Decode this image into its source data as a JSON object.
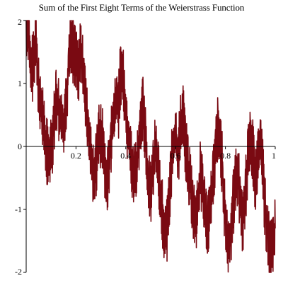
{
  "chart_data": {
    "type": "line",
    "title": "Sum of the First Eight Terms of the Weierstrass Function",
    "xlabel": "",
    "ylabel": "",
    "xlim": [
      0,
      1
    ],
    "ylim": [
      -2,
      2
    ],
    "x_ticks": [
      0.2,
      0.4,
      0.6,
      0.8,
      1
    ],
    "x_tick_labels": [
      "0.2",
      "0.4",
      "0.6",
      "0.8",
      "1"
    ],
    "y_ticks": [
      -2,
      -1,
      0,
      1,
      2
    ],
    "y_tick_labels": [
      "-2",
      "-1",
      "0",
      "1",
      "2"
    ],
    "grid": false,
    "legend": "none",
    "line_color": "#7a0a12",
    "series": [
      {
        "x": [
          0,
          0.01,
          0.02,
          0.03,
          0.04,
          0.05,
          0.06,
          0.07,
          0.08,
          0.09,
          0.1,
          0.11,
          0.12,
          0.13,
          0.14,
          0.15,
          0.16,
          0.17,
          0.18,
          0.19,
          0.2,
          0.21,
          0.22,
          0.23,
          0.24,
          0.25,
          0.26,
          0.27,
          0.28,
          0.29,
          0.3,
          0.31,
          0.32,
          0.33,
          0.34,
          0.35,
          0.36,
          0.37,
          0.38,
          0.39,
          0.4,
          0.41,
          0.42,
          0.43,
          0.44,
          0.45,
          0.46,
          0.47,
          0.48,
          0.49,
          0.5,
          0.51,
          0.52,
          0.53,
          0.54,
          0.55,
          0.56,
          0.57,
          0.58,
          0.59,
          0.6,
          0.61,
          0.62,
          0.63,
          0.64,
          0.65,
          0.66,
          0.67,
          0.68,
          0.69,
          0.7,
          0.71,
          0.72,
          0.73,
          0.74,
          0.75,
          0.76,
          0.77,
          0.78,
          0.79,
          0.8,
          0.81,
          0.82,
          0.83,
          0.84,
          0.85,
          0.86,
          0.87,
          0.88,
          0.89,
          0.9,
          0.91,
          0.92,
          0.93,
          0.94,
          0.95,
          0.96,
          0.97,
          0.98,
          0.99,
          1
        ],
        "y": [
          1.8,
          1.9,
          1.2,
          1.3,
          1.7,
          0.9,
          0.6,
          0.3,
          0.0,
          -0.2,
          -0.1,
          0.3,
          0.8,
          0.6,
          0.4,
          0.2,
          0.6,
          1.3,
          1.7,
          1.5,
          1.3,
          1.2,
          1.5,
          1.1,
          0.6,
          0.2,
          -0.2,
          -0.5,
          -0.3,
          0.1,
          0.2,
          0.0,
          -0.6,
          -0.4,
          0.1,
          0.4,
          0.8,
          0.6,
          1.2,
          1.0,
          0.5,
          0.2,
          -0.2,
          -0.5,
          -0.4,
          -0.1,
          0.4,
          0.6,
          0.1,
          -0.6,
          -0.8,
          -0.4,
          0.0,
          -0.3,
          -0.8,
          -1.2,
          -1.5,
          -1.1,
          -0.5,
          0.0,
          0.2,
          -0.2,
          0.3,
          0.5,
          0.0,
          -0.4,
          -0.6,
          -1.0,
          -1.2,
          -0.9,
          -0.4,
          -0.8,
          -1.1,
          -1.3,
          -1.0,
          -0.5,
          -0.1,
          0.3,
          0.1,
          -0.5,
          -1.2,
          -1.6,
          -1.4,
          -1.0,
          -0.6,
          -0.4,
          -0.9,
          -1.2,
          -0.8,
          -0.2,
          0.2,
          -0.1,
          -0.5,
          -0.3,
          0.0,
          -0.4,
          -1.0,
          -1.4,
          -1.7,
          -1.5,
          -1.3
        ]
      }
    ]
  }
}
